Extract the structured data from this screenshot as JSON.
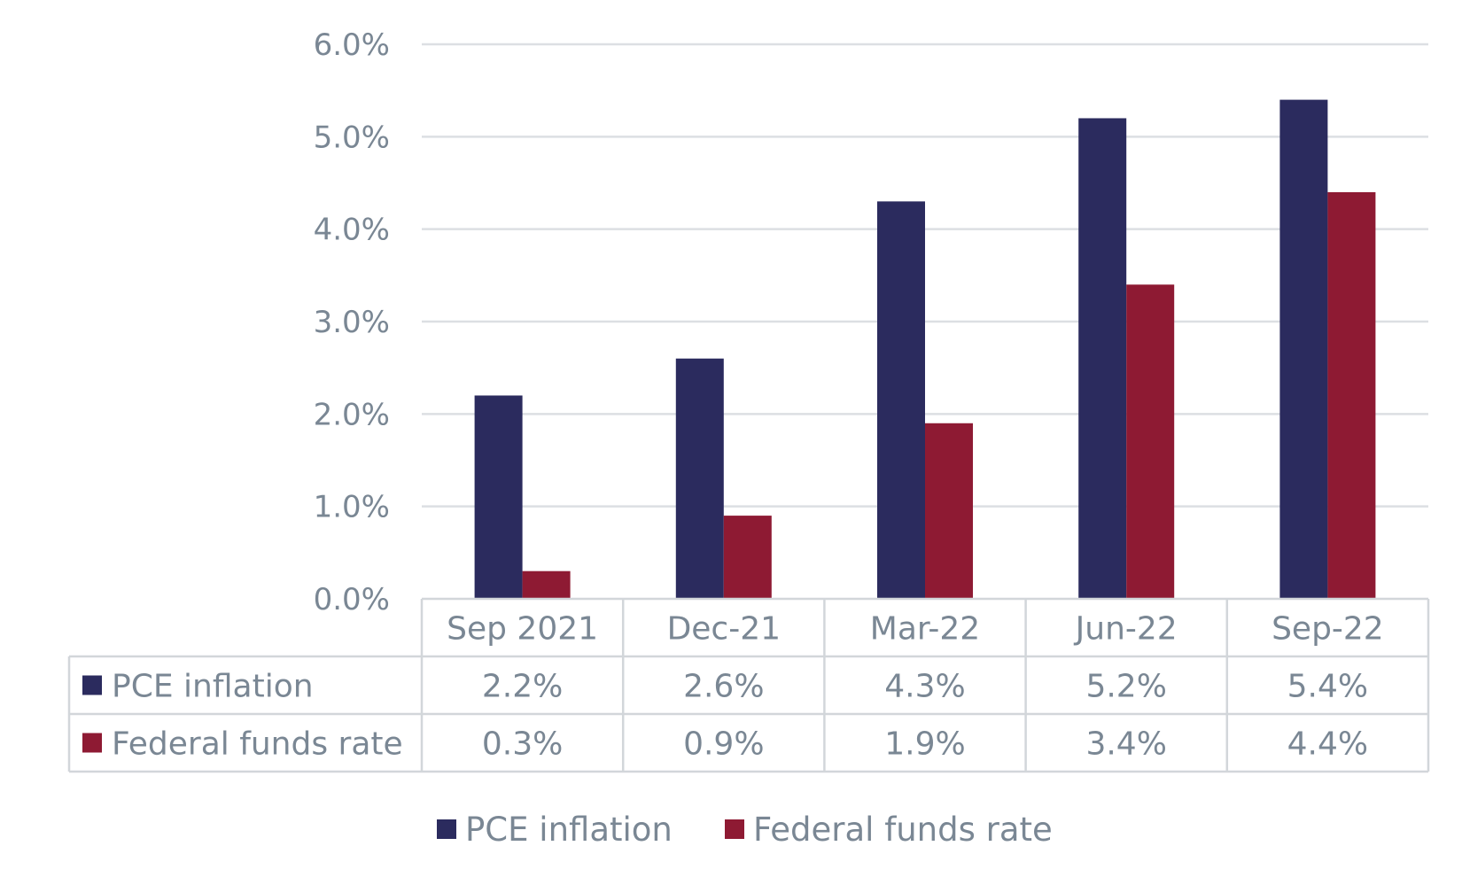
{
  "chart_data": {
    "type": "bar",
    "categories": [
      "Sep 2021",
      "Dec-21",
      "Mar-22",
      "Jun-22",
      "Sep-22"
    ],
    "series": [
      {
        "name": "PCE inflation",
        "values": [
          2.2,
          2.6,
          4.3,
          5.2,
          5.4
        ],
        "labels": [
          "2.2%",
          "2.6%",
          "4.3%",
          "5.2%",
          "5.4%"
        ],
        "color": "#2b2b5e"
      },
      {
        "name": "Federal funds rate",
        "values": [
          0.3,
          0.9,
          1.9,
          3.4,
          4.4
        ],
        "labels": [
          "0.3%",
          "0.9%",
          "1.9%",
          "3.4%",
          "4.4%"
        ],
        "color": "#8e1a33"
      }
    ],
    "y_ticks": [
      "0.0%",
      "1.0%",
      "2.0%",
      "3.0%",
      "4.0%",
      "5.0%",
      "6.0%"
    ],
    "ylim": [
      0,
      6
    ],
    "grid": true,
    "data_table": true,
    "legend_position": "bottom"
  },
  "colors": {
    "grid": "#dcdfe3",
    "table_border": "#d2d6da",
    "text": "#7a8794"
  }
}
